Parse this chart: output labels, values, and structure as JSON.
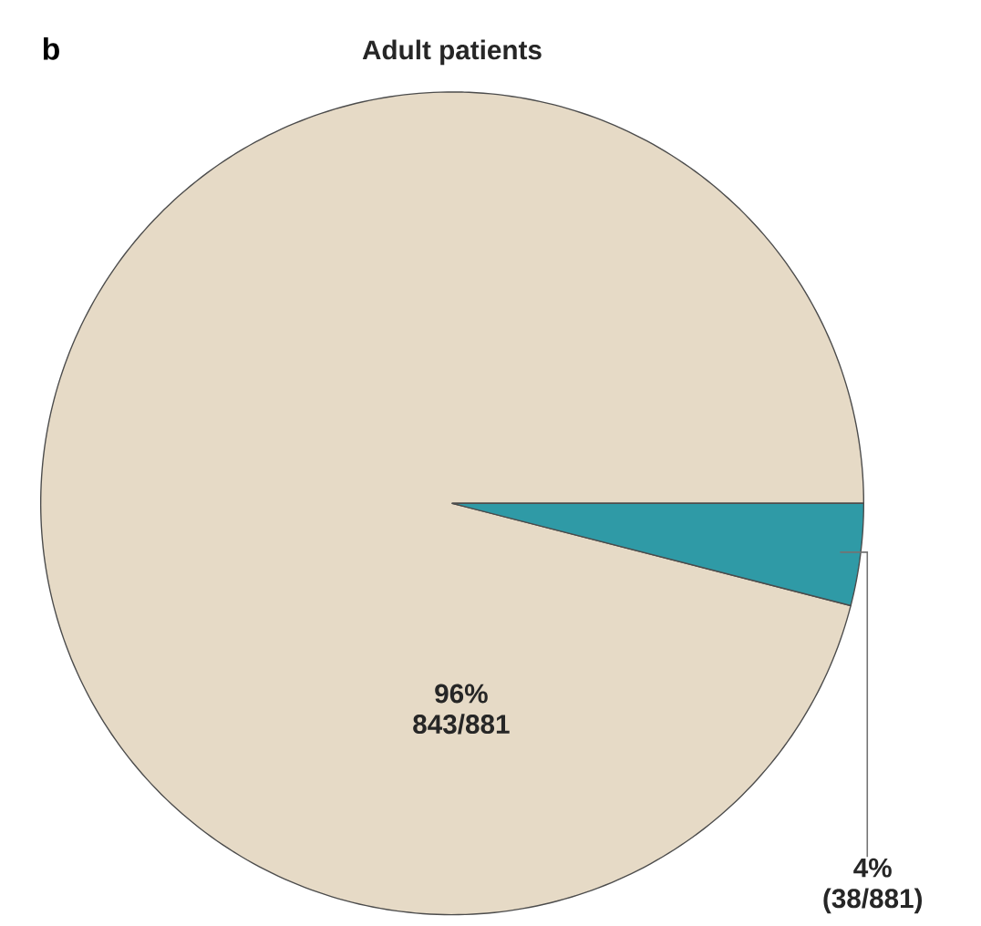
{
  "chart_data": {
    "type": "pie",
    "title": "Adult patients",
    "categories": [
      null,
      null
    ],
    "values": [
      96,
      4
    ],
    "colors": [
      "#e6dac6",
      "#2f9aa6"
    ],
    "value_labels": [
      "96% 843/881",
      "4% (38/881)"
    ],
    "annotations": [
      "b"
    ]
  }
}
